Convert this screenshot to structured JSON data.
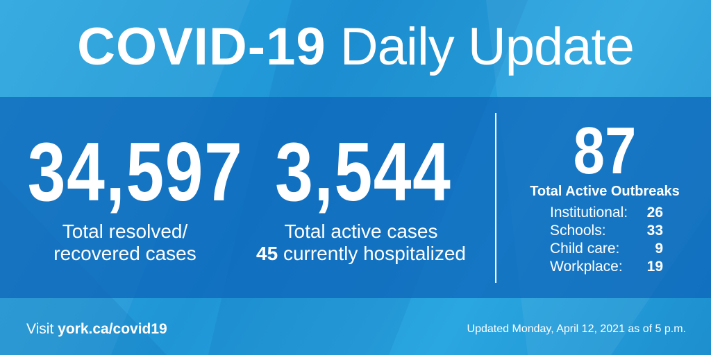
{
  "title": {
    "bold": "COVID-19",
    "rest": "Daily Update"
  },
  "resolved": {
    "number": "34,597",
    "line1": "Total resolved/",
    "line2": "recovered cases"
  },
  "active": {
    "number": "3,544",
    "line1": "Total active cases",
    "hosp_count": "45",
    "hosp_text": "currently hospitalized"
  },
  "outbreaks": {
    "number": "87",
    "label": "Total Active Outbreaks",
    "rows": [
      {
        "label": "Institutional:",
        "value": "26"
      },
      {
        "label": "Schools:",
        "value": "33"
      },
      {
        "label": "Child care:",
        "value": "9"
      },
      {
        "label": "Workplace:",
        "value": "19"
      }
    ]
  },
  "footer": {
    "visit_prefix": "Visit",
    "url": "york.ca/covid19",
    "updated_prefix": "Updated",
    "updated_date": "Monday, April 12, 2021 as of 5 p.m."
  },
  "colors": {
    "background": "#1f95d6",
    "band": "#0c64b9",
    "text": "#ffffff"
  }
}
